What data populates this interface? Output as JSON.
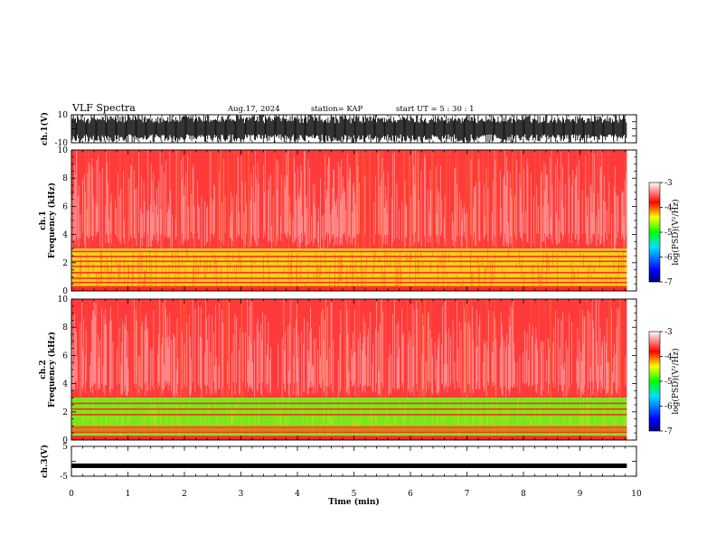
{
  "header": {
    "title": "VLF Spectra",
    "date": "Aug.17, 2024",
    "station": "station= KAP",
    "start": "start  UT =   5  : 30 : 1"
  },
  "chart_data": [
    {
      "type": "line",
      "panel": "ch1-waveform",
      "ylabel": "ch.1(V)",
      "ylim": [
        -10,
        10
      ],
      "yticks": [
        "10",
        "-10"
      ],
      "xlim": [
        0,
        10
      ],
      "data_end_min": 9.83,
      "description_values": {
        "mean_V": 0,
        "amplitude_V": 10
      }
    },
    {
      "type": "heatmap",
      "panel": "ch1-spectrogram",
      "ylabel": "ch.1\nFrequency  (kHz)",
      "ylabel_top": "ch.1",
      "ylabel_bottom": "Frequency  (kHz)",
      "yticks": [
        "0",
        "2",
        "4",
        "6",
        "8",
        "10"
      ],
      "ylim": [
        0,
        10
      ],
      "xlim": [
        0,
        10
      ],
      "data_end_min": 9.83,
      "band_levels": [
        {
          "from_kHz": 0,
          "to_kHz": 3.0,
          "logPSD": -4.8
        },
        {
          "from_kHz": 3.0,
          "to_kHz": 10,
          "logPSD": -3.8
        }
      ],
      "colorbar": {
        "label": "log(PSD)(V²/Hz)",
        "ticks": [
          "-3",
          "-4",
          "-5",
          "-6",
          "-7"
        ],
        "range": [
          -7,
          -3
        ]
      }
    },
    {
      "type": "heatmap",
      "panel": "ch2-spectrogram",
      "ylabel_top": "ch.2",
      "ylabel_bottom": "Frequency  (kHz)",
      "yticks": [
        "0",
        "2",
        "4",
        "6",
        "8",
        "10"
      ],
      "ylim": [
        0,
        10
      ],
      "xlim": [
        0,
        10
      ],
      "data_end_min": 9.83,
      "band_levels": [
        {
          "from_kHz": 0,
          "to_kHz": 3.0,
          "logPSD": -5.0
        },
        {
          "from_kHz": 3.0,
          "to_kHz": 10,
          "logPSD": -3.8
        }
      ],
      "colorbar": {
        "label": "log(PSD)(V²/Hz)",
        "ticks": [
          "-3",
          "-4",
          "-5",
          "-6",
          "-7"
        ],
        "range": [
          -7,
          -3
        ]
      }
    },
    {
      "type": "line",
      "panel": "ch3-waveform",
      "ylabel": "ch.3(V)",
      "ylim": [
        -5,
        5
      ],
      "yticks": [
        "5",
        "-5"
      ],
      "xlim": [
        0,
        10
      ],
      "data_end_min": 9.83,
      "description_values": {
        "mean_V": -1.5,
        "amplitude_V": 0.5
      }
    }
  ],
  "xaxis": {
    "label": "Time  (min)",
    "ticks": [
      "0",
      "1",
      "2",
      "3",
      "4",
      "5",
      "6",
      "7",
      "8",
      "9",
      "10"
    ]
  }
}
